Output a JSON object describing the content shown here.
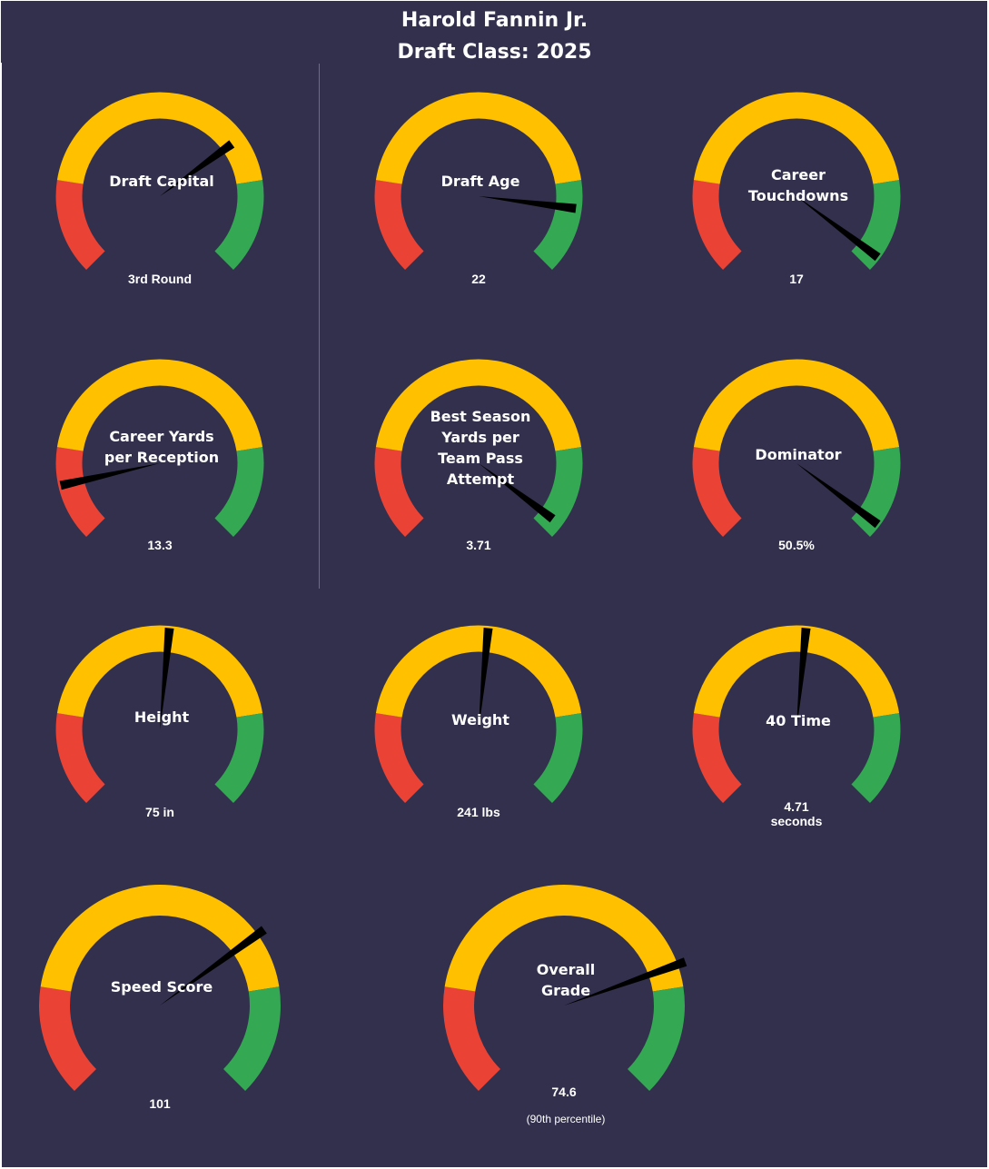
{
  "header": {
    "line1": "Harold Fannin Jr.",
    "line2": "Draft Class: 2025"
  },
  "colors": {
    "background": "#32304d",
    "red": "#ea4335",
    "yellow": "#ffc000",
    "green": "#34a853",
    "needle": "#000000",
    "text": "#ffffff"
  },
  "chart_data": [
    {
      "type": "gauge",
      "label": "Draft Capital",
      "value_text": "3rd Round",
      "needle_fraction": 0.7
    },
    {
      "type": "gauge",
      "label": "Draft Age",
      "value_text": "22",
      "needle_fraction": 0.86
    },
    {
      "type": "gauge",
      "label": "Career\nTouchdowns",
      "value_text": "17",
      "needle_fraction": 0.97
    },
    {
      "type": "gauge",
      "label": "Career Yards\nper Reception",
      "value_text": "13.3",
      "needle_fraction": 0.12
    },
    {
      "type": "gauge",
      "label": "Best Season\nYards per\nTeam Pass\nAttempt",
      "value_text": "3.71",
      "needle_fraction": 0.97
    },
    {
      "type": "gauge",
      "label": "Dominator",
      "value_text": "50.5%",
      "needle_fraction": 0.97
    },
    {
      "type": "gauge",
      "label": "Height",
      "value_text": "75 in",
      "needle_fraction": 0.52
    },
    {
      "type": "gauge",
      "label": "Weight",
      "value_text": "241 lbs",
      "needle_fraction": 0.52
    },
    {
      "type": "gauge",
      "label": "40 Time",
      "value_text": "4.71\nseconds",
      "needle_fraction": 0.52
    },
    {
      "type": "gauge",
      "label": "Speed Score",
      "value_text": "101",
      "needle_fraction": 0.7
    },
    {
      "type": "gauge",
      "label": "Overall\nGrade",
      "value_text": "74.6",
      "sub_text": "(90th  percentile)",
      "needle_fraction": 0.76
    }
  ]
}
